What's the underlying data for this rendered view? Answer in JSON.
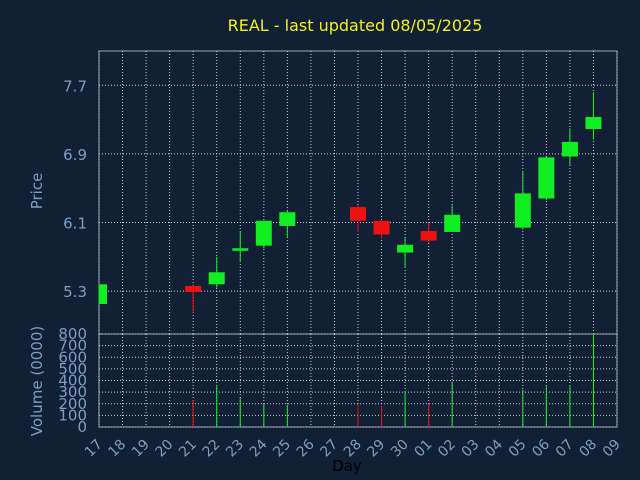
{
  "chart_title": "REAL - last updated 08/05/2025",
  "colors": {
    "background": "#112035",
    "title": "#f2f21c",
    "axis_text": "#7a9ec4",
    "frame": "#9aa8b8",
    "grid": "#c8d2dc",
    "up": "#11ee22",
    "down": "#ee1111"
  },
  "chart_data": [
    {
      "type": "candlestick",
      "ylabel": "Price",
      "ylim": [
        4.8,
        8.1
      ],
      "yticks": [
        "5.3",
        "6.1",
        "6.9",
        "7.7"
      ],
      "grid": true,
      "x": [
        "17",
        "18",
        "19",
        "20",
        "21",
        "22",
        "23",
        "24",
        "25",
        "26",
        "27",
        "28",
        "29",
        "30",
        "01",
        "02",
        "03",
        "04",
        "05",
        "06",
        "07",
        "08",
        "09"
      ],
      "candles": [
        {
          "x": "17",
          "open": 5.15,
          "high": 5.38,
          "low": 5.15,
          "close": 5.38
        },
        {
          "x": "21",
          "open": 5.36,
          "high": 5.38,
          "low": 5.05,
          "close": 5.29
        },
        {
          "x": "22",
          "open": 5.38,
          "high": 5.7,
          "low": 5.34,
          "close": 5.52
        },
        {
          "x": "23",
          "open": 5.77,
          "high": 6.0,
          "low": 5.64,
          "close": 5.8
        },
        {
          "x": "24",
          "open": 5.83,
          "high": 6.12,
          "low": 5.8,
          "close": 6.12
        },
        {
          "x": "25",
          "open": 6.06,
          "high": 6.24,
          "low": 5.92,
          "close": 6.22
        },
        {
          "x": "28",
          "open": 6.28,
          "high": 6.3,
          "low": 5.99,
          "close": 6.12
        },
        {
          "x": "29",
          "open": 6.12,
          "high": 6.12,
          "low": 5.91,
          "close": 5.96
        },
        {
          "x": "30",
          "open": 5.75,
          "high": 5.92,
          "low": 5.57,
          "close": 5.84
        },
        {
          "x": "01",
          "open": 6.0,
          "high": 6.1,
          "low": 5.86,
          "close": 5.89
        },
        {
          "x": "02",
          "open": 5.99,
          "high": 6.3,
          "low": 5.99,
          "close": 6.19
        },
        {
          "x": "05",
          "open": 6.04,
          "high": 6.7,
          "low": 6.02,
          "close": 6.44
        },
        {
          "x": "06",
          "open": 6.38,
          "high": 6.86,
          "low": 6.36,
          "close": 6.86
        },
        {
          "x": "07",
          "open": 6.87,
          "high": 7.2,
          "low": 6.77,
          "close": 7.04
        },
        {
          "x": "08",
          "open": 7.19,
          "high": 7.62,
          "low": 7.07,
          "close": 7.33
        }
      ]
    },
    {
      "type": "bar",
      "ylabel": "Volume (0000)",
      "xlabel": "Day",
      "ylim": [
        0,
        800
      ],
      "yticks": [
        "0",
        "100",
        "200",
        "300",
        "400",
        "500",
        "600",
        "700",
        "800"
      ],
      "grid": true,
      "x": [
        "17",
        "18",
        "19",
        "20",
        "21",
        "22",
        "23",
        "24",
        "25",
        "26",
        "27",
        "28",
        "29",
        "30",
        "01",
        "02",
        "03",
        "04",
        "05",
        "06",
        "07",
        "08",
        "09"
      ],
      "bars": [
        {
          "x": "21",
          "value": 230,
          "direction": "down"
        },
        {
          "x": "22",
          "value": 350,
          "direction": "up"
        },
        {
          "x": "23",
          "value": 250,
          "direction": "up"
        },
        {
          "x": "24",
          "value": 200,
          "direction": "up"
        },
        {
          "x": "25",
          "value": 190,
          "direction": "up"
        },
        {
          "x": "28",
          "value": 200,
          "direction": "down"
        },
        {
          "x": "29",
          "value": 180,
          "direction": "down"
        },
        {
          "x": "30",
          "value": 310,
          "direction": "up"
        },
        {
          "x": "01",
          "value": 200,
          "direction": "down"
        },
        {
          "x": "02",
          "value": 390,
          "direction": "up"
        },
        {
          "x": "05",
          "value": 320,
          "direction": "up"
        },
        {
          "x": "06",
          "value": 350,
          "direction": "up"
        },
        {
          "x": "07",
          "value": 350,
          "direction": "up"
        },
        {
          "x": "08",
          "value": 800,
          "direction": "up"
        }
      ]
    }
  ]
}
